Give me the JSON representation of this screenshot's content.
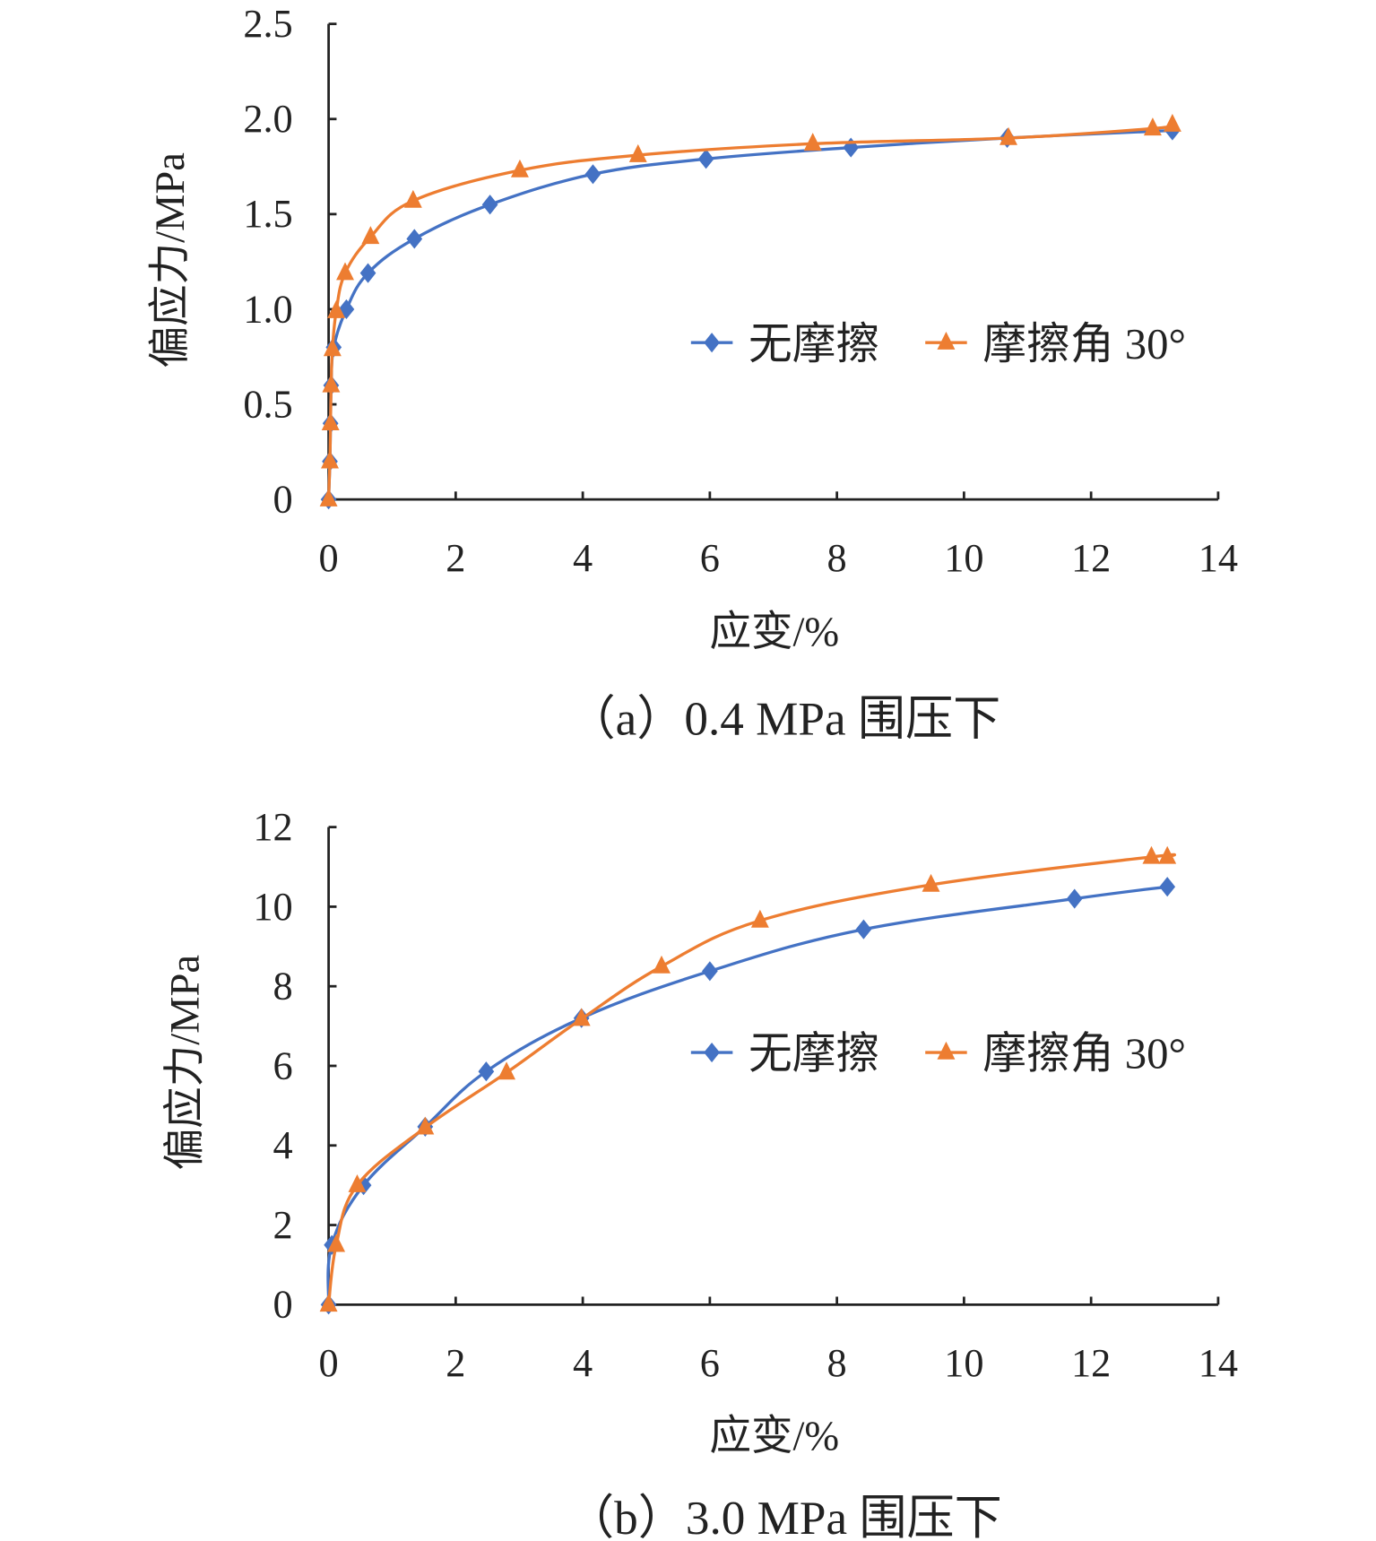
{
  "colors": {
    "no_friction": "#4472C4",
    "friction_30": "#ED7D31",
    "axis": "#222222"
  },
  "chart_data": [
    {
      "type": "line",
      "caption": "（a）0.4 MPa 围压下",
      "xlabel": "应变/%",
      "ylabel": "偏应力/MPa",
      "xlim": [
        0,
        14
      ],
      "ylim": [
        0,
        2.5
      ],
      "xticks": [
        "0",
        "2",
        "4",
        "6",
        "8",
        "10",
        "12",
        "14"
      ],
      "yticks": [
        "0",
        "0.5",
        "1.0",
        "1.5",
        "2.0",
        "2.5"
      ],
      "legend_position": "center-right",
      "series": [
        {
          "name": "无摩擦",
          "marker": "diamond",
          "x": [
            0,
            0.02,
            0.03,
            0.04,
            0.08,
            0.28,
            0.62,
            1.35,
            2.54,
            4.16,
            5.94,
            8.22,
            10.68,
            13.28
          ],
          "y": [
            0,
            0.2,
            0.4,
            0.6,
            0.8,
            1.0,
            1.19,
            1.37,
            1.55,
            1.71,
            1.79,
            1.85,
            1.9,
            1.94
          ]
        },
        {
          "name": "摩擦角 30°",
          "marker": "triangle",
          "x": [
            0,
            0.02,
            0.03,
            0.04,
            0.06,
            0.12,
            0.26,
            0.66,
            1.33,
            3.01,
            4.87,
            7.62,
            10.7,
            12.97,
            13.28
          ],
          "y": [
            0,
            0.2,
            0.4,
            0.6,
            0.79,
            0.99,
            1.19,
            1.38,
            1.57,
            1.73,
            1.81,
            1.87,
            1.9,
            1.95,
            1.97
          ]
        }
      ]
    },
    {
      "type": "line",
      "caption": "（b）3.0 MPa 围压下",
      "xlabel": "应变/%",
      "ylabel": "偏应力/MPa",
      "xlim": [
        0,
        14
      ],
      "ylim": [
        0,
        12
      ],
      "xticks": [
        "0",
        "2",
        "4",
        "6",
        "8",
        "10",
        "12",
        "14"
      ],
      "yticks": [
        "0",
        "2",
        "4",
        "6",
        "8",
        "10",
        "12"
      ],
      "legend_position": "center-right",
      "series": [
        {
          "name": "无摩擦",
          "marker": "diamond",
          "x": [
            0,
            0.05,
            0.55,
            1.52,
            2.48,
            3.98,
            6.0,
            8.42,
            11.74,
            13.2
          ],
          "y": [
            0,
            1.5,
            3.0,
            4.47,
            5.86,
            7.2,
            8.38,
            9.43,
            10.2,
            10.5
          ]
        },
        {
          "name": "摩擦角 30°",
          "marker": "triangle",
          "x": [
            0,
            0.12,
            0.45,
            1.52,
            2.8,
            3.98,
            5.24,
            6.79,
            9.48,
            12.95,
            13.2
          ],
          "y": [
            0,
            1.5,
            3.0,
            4.45,
            5.83,
            7.18,
            8.5,
            9.65,
            10.55,
            11.25,
            11.25
          ]
        }
      ]
    }
  ]
}
